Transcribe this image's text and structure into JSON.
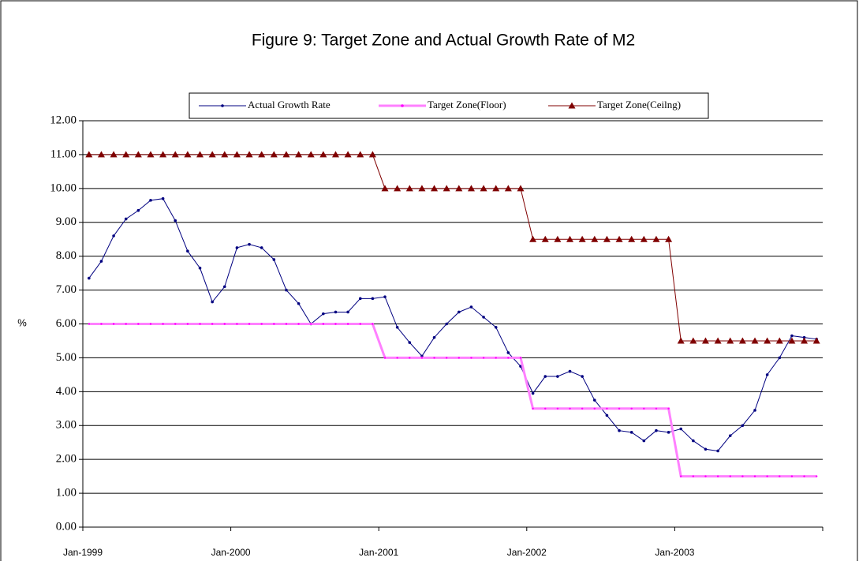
{
  "chart_data": {
    "type": "line",
    "title": "Figure 9: Target Zone and Actual Growth Rate of M2",
    "y_label": "%",
    "categories": [
      "Jan-1999",
      null,
      null,
      null,
      null,
      null,
      null,
      null,
      null,
      null,
      null,
      null,
      "Jan-2000",
      null,
      null,
      null,
      null,
      null,
      null,
      null,
      null,
      null,
      null,
      null,
      "Jan-2001",
      null,
      null,
      null,
      null,
      null,
      null,
      null,
      null,
      null,
      null,
      null,
      "Jan-2002",
      null,
      null,
      null,
      null,
      null,
      null,
      null,
      null,
      null,
      null,
      null,
      "Jan-2003",
      null,
      null,
      null,
      null,
      null,
      null,
      null,
      null,
      null,
      null,
      null
    ],
    "series": [
      {
        "name": "Actual Growth Rate",
        "color": "#000080",
        "marker": "dot",
        "width": 1,
        "values": [
          7.35,
          7.85,
          8.6,
          9.1,
          9.35,
          9.65,
          9.7,
          9.05,
          8.15,
          7.65,
          6.65,
          7.1,
          8.25,
          8.35,
          8.25,
          7.9,
          7.0,
          6.6,
          6.0,
          6.3,
          6.35,
          6.35,
          6.75,
          6.75,
          6.8,
          5.9,
          5.45,
          5.05,
          5.6,
          6.0,
          6.35,
          6.5,
          6.2,
          5.9,
          5.15,
          4.75,
          3.95,
          4.45,
          4.45,
          4.6,
          4.45,
          3.75,
          3.3,
          2.85,
          2.8,
          2.55,
          2.85,
          2.8,
          2.9,
          2.55,
          2.3,
          2.25,
          2.7,
          3.0,
          3.45,
          4.5,
          5.0,
          5.65,
          5.6,
          5.55
        ]
      },
      {
        "name": "Target Zone(Floor)",
        "color": "#ff80ff",
        "marker": "dot",
        "width": 3,
        "values": [
          6,
          6,
          6,
          6,
          6,
          6,
          6,
          6,
          6,
          6,
          6,
          6,
          6,
          6,
          6,
          6,
          6,
          6,
          6,
          6,
          6,
          6,
          6,
          6,
          5,
          5,
          5,
          5,
          5,
          5,
          5,
          5,
          5,
          5,
          5,
          5,
          3.5,
          3.5,
          3.5,
          3.5,
          3.5,
          3.5,
          3.5,
          3.5,
          3.5,
          3.5,
          3.5,
          3.5,
          1.5,
          1.5,
          1.5,
          1.5,
          1.5,
          1.5,
          1.5,
          1.5,
          1.5,
          1.5,
          1.5,
          1.5
        ]
      },
      {
        "name": "Target Zone(Ceilng)",
        "color": "#800000",
        "marker": "triangle",
        "width": 1,
        "values": [
          11,
          11,
          11,
          11,
          11,
          11,
          11,
          11,
          11,
          11,
          11,
          11,
          11,
          11,
          11,
          11,
          11,
          11,
          11,
          11,
          11,
          11,
          11,
          11,
          10,
          10,
          10,
          10,
          10,
          10,
          10,
          10,
          10,
          10,
          10,
          10,
          8.5,
          8.5,
          8.5,
          8.5,
          8.5,
          8.5,
          8.5,
          8.5,
          8.5,
          8.5,
          8.5,
          8.5,
          5.5,
          5.5,
          5.5,
          5.5,
          5.5,
          5.5,
          5.5,
          5.5,
          5.5,
          5.5,
          5.5,
          5.5
        ]
      }
    ],
    "ylim": [
      0,
      12
    ],
    "yticks": [
      {
        "value": 0,
        "label": "0.00"
      },
      {
        "value": 1,
        "label": "1.00"
      },
      {
        "value": 2,
        "label": "2.00"
      },
      {
        "value": 3,
        "label": "3.00"
      },
      {
        "value": 4,
        "label": "4.00"
      },
      {
        "value": 5,
        "label": "5.00"
      },
      {
        "value": 6,
        "label": "6.00"
      },
      {
        "value": 7,
        "label": "7.00"
      },
      {
        "value": 8,
        "label": "8.00"
      },
      {
        "value": 9,
        "label": "9.00"
      },
      {
        "value": 10,
        "label": "10.00"
      },
      {
        "value": 11,
        "label": "11.00"
      },
      {
        "value": 12,
        "label": "12.00"
      }
    ],
    "grid": true,
    "legend": "top"
  }
}
